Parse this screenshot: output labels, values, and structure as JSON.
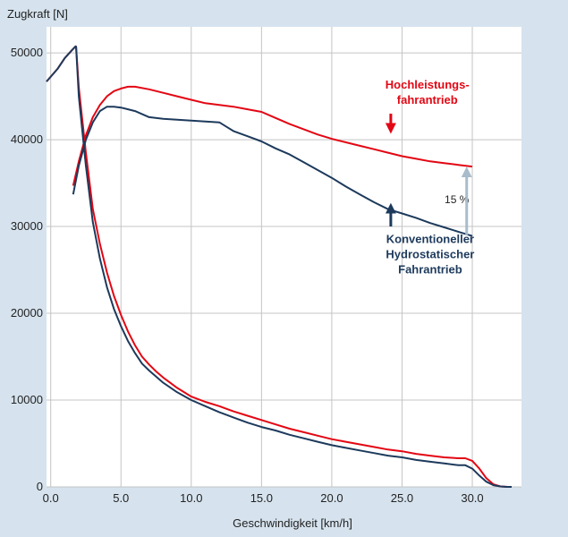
{
  "chart_data": {
    "type": "line",
    "ylabel": "Zugkraft [N]",
    "xlabel": "Geschwindigkeit [km/h]",
    "xlim": [
      -0.3,
      33.5
    ],
    "ylim": [
      0,
      53000
    ],
    "xticks": [
      0,
      5,
      10,
      15,
      20,
      25,
      30
    ],
    "xtick_labels": [
      "0.0",
      "5.0",
      "10.0",
      "15.0",
      "20.0",
      "25.0",
      "30.0"
    ],
    "yticks": [
      0,
      10000,
      20000,
      30000,
      40000,
      50000
    ],
    "ytick_labels": [
      "0",
      "10000",
      "20000",
      "30000",
      "40000",
      "50000"
    ],
    "grid": true,
    "colors": {
      "red": "#e30613",
      "blue": "#1d3a5c",
      "arrow": "#a9bccb",
      "background": "#d6e3ee",
      "plot": "#ffffff"
    },
    "series": [
      {
        "name": "Hochleistungs-fahrantrieb",
        "color": "#e30613",
        "segments": [
          {
            "x": [
              -0.3,
              0.5,
              1.0,
              1.5,
              1.8
            ],
            "y": [
              46700,
              48200,
              49400,
              50300,
              50800
            ]
          },
          {
            "x": [
              1.8,
              2.0,
              2.5,
              3.0,
              3.5,
              4.0,
              4.5,
              5.0,
              5.5,
              6.0,
              6.5,
              7.0,
              7.5,
              8.0,
              9.0,
              10.0,
              11.0,
              12.0,
              13.0,
              14.0,
              15.0,
              16.0,
              17.0,
              18.0,
              19.0,
              20.0,
              21.0,
              22.0,
              23.0,
              24.0,
              25.0,
              26.0,
              27.0,
              28.0,
              29.0,
              29.5,
              30.0,
              30.5,
              31.0,
              31.5,
              32.0,
              32.5
            ],
            "y": [
              50800,
              46000,
              38500,
              32000,
              28000,
              24700,
              22000,
              19800,
              17900,
              16300,
              15000,
              14100,
              13300,
              12600,
              11400,
              10400,
              9800,
              9300,
              8700,
              8200,
              7700,
              7200,
              6700,
              6300,
              5900,
              5500,
              5200,
              4900,
              4600,
              4300,
              4100,
              3800,
              3600,
              3400,
              3300,
              3300,
              3000,
              2100,
              1000,
              300,
              50,
              0
            ]
          },
          {
            "x": [
              1.6,
              2.0,
              2.5,
              3.0,
              3.5,
              4.0,
              4.5,
              5.0,
              5.5,
              6.0,
              7.0,
              8.0,
              9.0,
              10.0,
              11.0,
              12.0,
              13.0,
              14.0,
              15.0,
              16.0,
              17.0,
              18.0,
              19.0,
              20.0,
              21.0,
              22.0,
              23.0,
              24.0,
              25.0,
              26.0,
              27.0,
              28.0,
              29.0,
              30.0
            ],
            "y": [
              34700,
              37500,
              40500,
              42600,
              44000,
              45000,
              45600,
              45900,
              46100,
              46100,
              45800,
              45400,
              45000,
              44600,
              44200,
              44000,
              43800,
              43500,
              43200,
              42500,
              41800,
              41200,
              40600,
              40100,
              39700,
              39300,
              38900,
              38500,
              38100,
              37800,
              37500,
              37300,
              37100,
              36900
            ]
          }
        ]
      },
      {
        "name": "Konventioneller Hydrostatischer Fahrantrieb",
        "color": "#1d3a5c",
        "segments": [
          {
            "x": [
              -0.3,
              0.5,
              1.0,
              1.5,
              1.8
            ],
            "y": [
              46700,
              48200,
              49400,
              50300,
              50800
            ]
          },
          {
            "x": [
              1.8,
              2.0,
              2.5,
              3.0,
              3.5,
              4.0,
              4.5,
              5.0,
              5.5,
              6.0,
              6.5,
              7.0,
              7.5,
              8.0,
              9.0,
              10.0,
              11.0,
              12.0,
              13.0,
              14.0,
              15.0,
              16.0,
              17.0,
              18.0,
              19.0,
              20.0,
              21.0,
              22.0,
              23.0,
              24.0,
              25.0,
              26.0,
              27.0,
              28.0,
              29.0,
              29.5,
              30.0,
              30.5,
              31.0,
              31.5,
              32.0,
              32.5,
              32.8
            ],
            "y": [
              50800,
              45000,
              37000,
              30500,
              26300,
              23000,
              20500,
              18500,
              16800,
              15400,
              14200,
              13400,
              12700,
              12000,
              10900,
              10000,
              9300,
              8600,
              8000,
              7400,
              6900,
              6500,
              6000,
              5600,
              5200,
              4800,
              4500,
              4200,
              3900,
              3600,
              3400,
              3100,
              2900,
              2700,
              2500,
              2500,
              2100,
              1300,
              600,
              200,
              50,
              0,
              0
            ]
          },
          {
            "x": [
              1.6,
              2.0,
              2.5,
              3.0,
              3.5,
              4.0,
              4.5,
              5.0,
              5.5,
              6.0,
              7.0,
              8.0,
              9.0,
              10.0,
              11.0,
              12.0,
              13.0,
              14.0,
              15.0,
              16.0,
              17.0,
              18.0,
              19.0,
              20.0,
              21.0,
              22.0,
              23.0,
              24.0,
              25.0,
              26.0,
              27.0,
              28.0,
              29.0,
              30.0
            ],
            "y": [
              33700,
              37000,
              40000,
              42000,
              43300,
              43800,
              43800,
              43700,
              43500,
              43300,
              42600,
              42400,
              42300,
              42200,
              42100,
              42000,
              41000,
              40400,
              39800,
              39000,
              38300,
              37400,
              36500,
              35600,
              34600,
              33700,
              32800,
              32000,
              31500,
              31000,
              30400,
              29900,
              29400,
              28900
            ]
          }
        ]
      }
    ],
    "annotations": [
      {
        "lines": [
          "Hochleistungs-",
          "fahrantrieb"
        ],
        "color": "#e30613",
        "x": 26.8,
        "y": 45900,
        "arrow_from": 43000,
        "arrow_to": 41300,
        "arrow_x": 24.2
      },
      {
        "lines": [
          "Konventioneller",
          "Hydrostatischer",
          "Fahrantrieb"
        ],
        "color": "#1d3a5c",
        "x": 27.0,
        "y": 28100,
        "arrow_from": 30000,
        "arrow_to": 32100,
        "arrow_x": 24.2
      },
      {
        "lines": [
          "15 %"
        ],
        "x": 28.9,
        "y": 32700,
        "arrow_x": 29.6,
        "arrow_from": 29000,
        "arrow_to": 36900
      }
    ]
  }
}
